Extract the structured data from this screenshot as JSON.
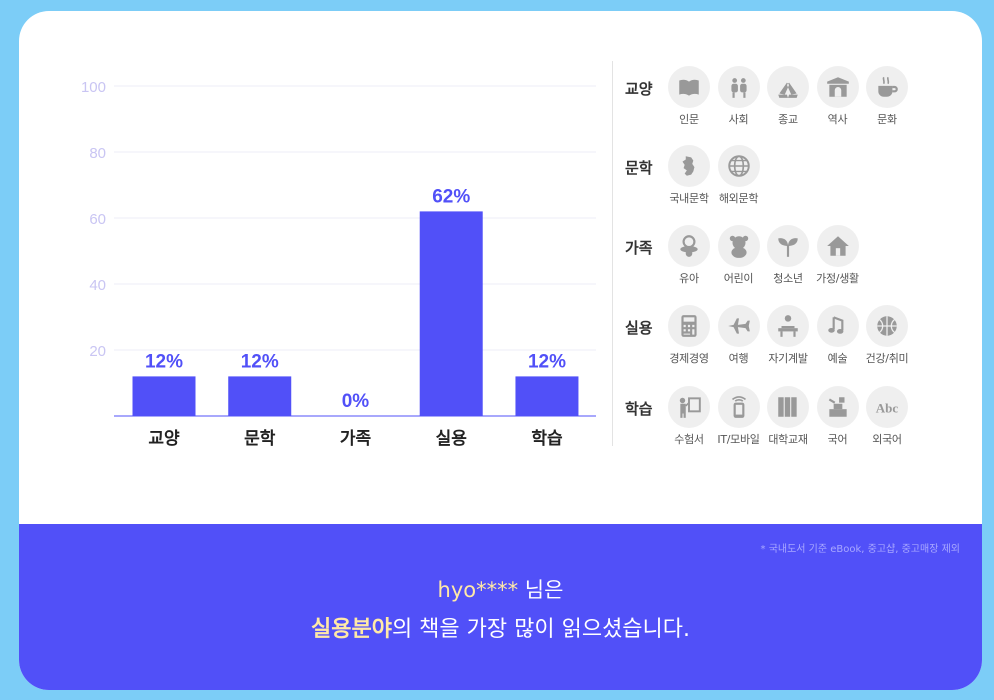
{
  "chart_data": {
    "type": "bar",
    "categories": [
      "교양",
      "문학",
      "가족",
      "실용",
      "학습"
    ],
    "values": [
      12,
      12,
      0,
      62,
      12
    ],
    "value_labels": [
      "12%",
      "12%",
      "0%",
      "62%",
      "12%"
    ],
    "yticks": [
      20,
      40,
      60,
      80,
      100
    ],
    "ylim": [
      0,
      100
    ],
    "grid": true,
    "colors": {
      "bar": "#5150f8",
      "tick": "#c9c5f3",
      "grid": "#ececf7"
    }
  },
  "categories_panel": [
    {
      "label": "교양",
      "items": [
        {
          "name": "인문",
          "icon": "book-icon"
        },
        {
          "name": "사회",
          "icon": "people-icon"
        },
        {
          "name": "종교",
          "icon": "praying-hands-icon"
        },
        {
          "name": "역사",
          "icon": "gate-icon"
        },
        {
          "name": "문화",
          "icon": "coffee-cup-icon"
        }
      ]
    },
    {
      "label": "문학",
      "items": [
        {
          "name": "국내문학",
          "icon": "korea-map-icon"
        },
        {
          "name": "해외문학",
          "icon": "globe-icon"
        }
      ]
    },
    {
      "label": "가족",
      "items": [
        {
          "name": "유아",
          "icon": "pacifier-icon"
        },
        {
          "name": "어린이",
          "icon": "teddy-bear-icon"
        },
        {
          "name": "청소년",
          "icon": "sprout-icon"
        },
        {
          "name": "가정/생활",
          "icon": "house-icon"
        }
      ]
    },
    {
      "label": "실용",
      "items": [
        {
          "name": "경제경영",
          "icon": "calculator-icon"
        },
        {
          "name": "여행",
          "icon": "airplane-icon"
        },
        {
          "name": "자기계발",
          "icon": "desk-icon"
        },
        {
          "name": "예술",
          "icon": "music-note-icon"
        },
        {
          "name": "건강/취미",
          "icon": "ball-icon"
        }
      ]
    },
    {
      "label": "학습",
      "items": [
        {
          "name": "수험서",
          "icon": "teacher-board-icon"
        },
        {
          "name": "IT/모바일",
          "icon": "mobile-icon"
        },
        {
          "name": "대학교재",
          "icon": "books-icon"
        },
        {
          "name": "국어",
          "icon": "blocks-icon"
        },
        {
          "name": "외국어",
          "icon": "abc-icon"
        }
      ]
    }
  ],
  "footer": {
    "note": "* 국내도서 기준 eBook, 중고샵, 중고매장 제외",
    "user": "hyo****",
    "user_suffix": " 님은",
    "highlight": "실용분야",
    "rest": "의 책을 가장 많이 읽으셨습니다."
  }
}
